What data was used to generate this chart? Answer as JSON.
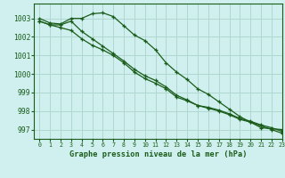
{
  "background_color": "#cff0ee",
  "grid_color": "#b0d8d0",
  "line_color": "#1a5c1a",
  "xlabel": "Graphe pression niveau de la mer (hPa)",
  "xlim": [
    -0.5,
    23
  ],
  "ylim": [
    996.5,
    1003.8
  ],
  "yticks": [
    997,
    998,
    999,
    1000,
    1001,
    1002,
    1003
  ],
  "xticks": [
    0,
    1,
    2,
    3,
    4,
    5,
    6,
    7,
    8,
    9,
    10,
    11,
    12,
    13,
    14,
    15,
    16,
    17,
    18,
    19,
    20,
    21,
    22,
    23
  ],
  "series1": [
    1003.0,
    1002.75,
    1002.7,
    1003.0,
    1003.0,
    1003.25,
    1003.3,
    1003.1,
    1002.6,
    1002.1,
    1001.8,
    1001.3,
    1000.6,
    1000.1,
    999.7,
    999.2,
    998.9,
    998.5,
    998.1,
    997.7,
    997.4,
    997.1,
    997.05,
    997.0
  ],
  "series2": [
    1002.85,
    1002.65,
    1002.65,
    1002.85,
    1002.3,
    1001.9,
    1001.5,
    1001.1,
    1000.7,
    1000.25,
    999.9,
    999.65,
    999.3,
    998.85,
    998.6,
    998.3,
    998.2,
    998.05,
    997.85,
    997.6,
    997.45,
    997.25,
    997.1,
    996.9
  ],
  "series3": [
    1002.85,
    1002.65,
    1002.5,
    1002.35,
    1001.9,
    1001.55,
    1001.3,
    1001.0,
    1000.6,
    1000.1,
    999.75,
    999.5,
    999.2,
    998.75,
    998.55,
    998.3,
    998.15,
    998.0,
    997.8,
    997.55,
    997.4,
    997.2,
    997.0,
    996.8
  ]
}
